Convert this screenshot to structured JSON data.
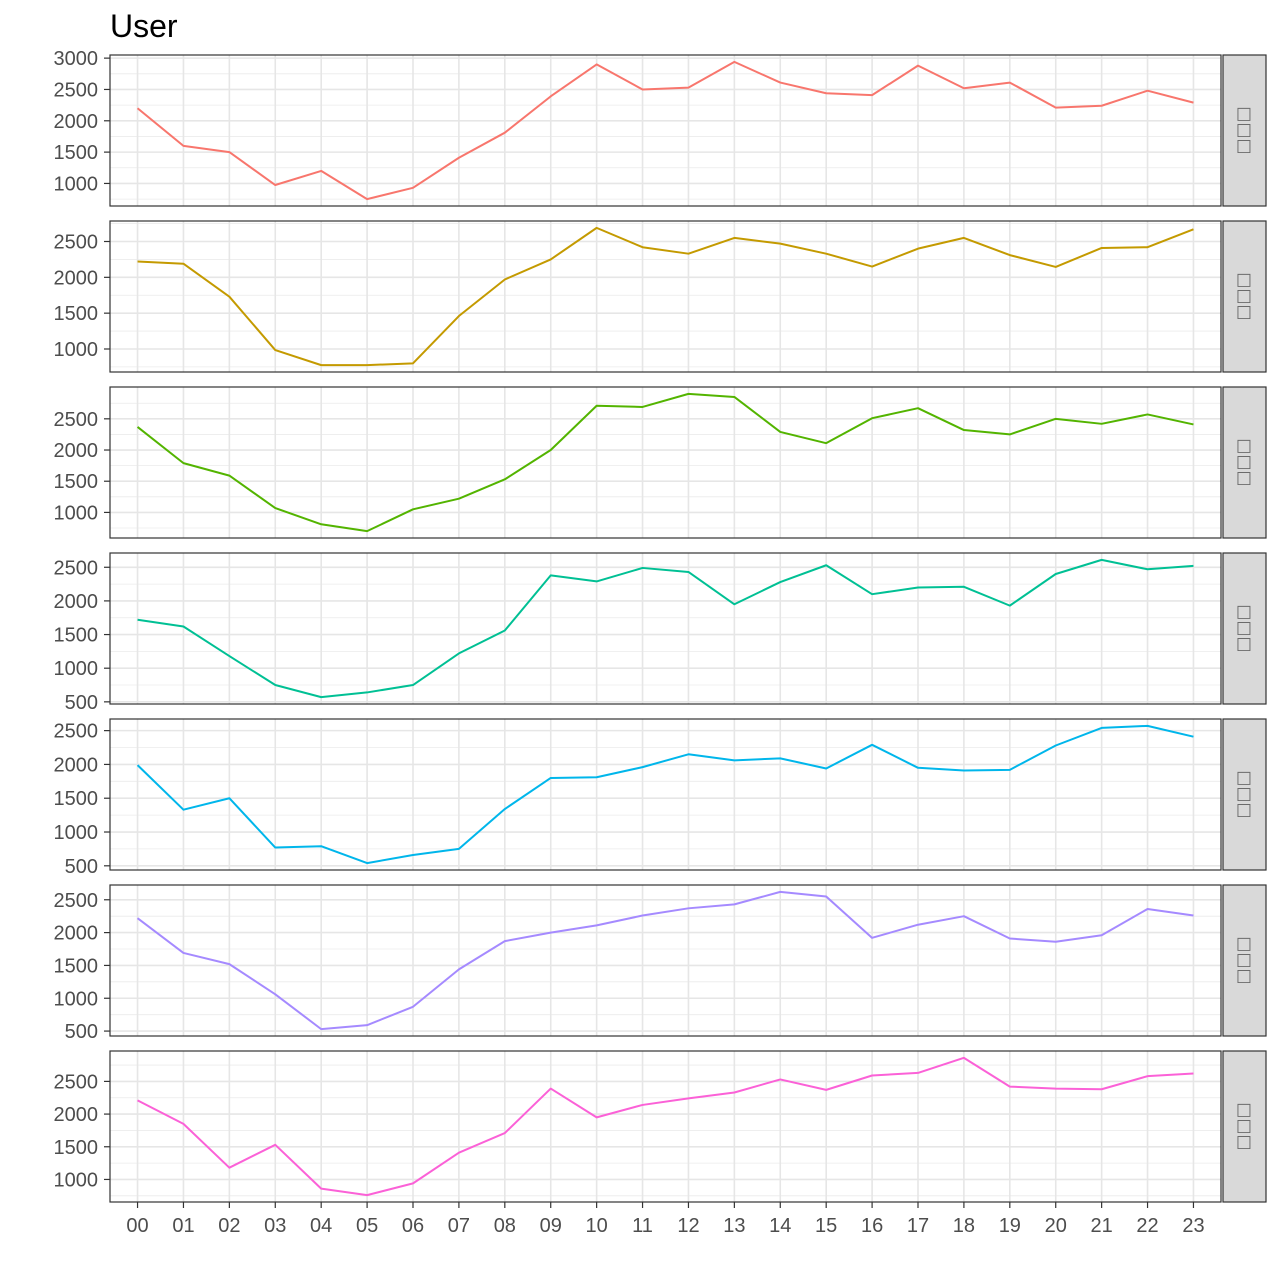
{
  "chart_data": {
    "type": "line",
    "title": "User",
    "x": [
      "00",
      "01",
      "02",
      "03",
      "04",
      "05",
      "06",
      "07",
      "08",
      "09",
      "10",
      "11",
      "12",
      "13",
      "14",
      "15",
      "16",
      "17",
      "18",
      "19",
      "20",
      "21",
      "22",
      "23"
    ],
    "grid": true,
    "legend": "none",
    "panels": [
      {
        "strip": "□□□",
        "color": "#F8766D",
        "ylim": [
          640,
          3050
        ],
        "yticks": [
          1000,
          1500,
          2000,
          2500,
          3000
        ],
        "values": [
          2200,
          1600,
          1500,
          975,
          1200,
          750,
          930,
          1410,
          1810,
          2390,
          2900,
          2500,
          2530,
          2940,
          2610,
          2440,
          2410,
          2880,
          2520,
          2610,
          2210,
          2240,
          2480,
          2290
        ]
      },
      {
        "strip": "□□□",
        "color": "#C49A00",
        "ylim": [
          679,
          2786
        ],
        "yticks": [
          1000,
          1500,
          2000,
          2500
        ],
        "values": [
          2220,
          2190,
          1730,
          985,
          775,
          775,
          800,
          1460,
          1970,
          2250,
          2690,
          2420,
          2330,
          2550,
          2470,
          2330,
          2150,
          2400,
          2550,
          2310,
          2145,
          2410,
          2420,
          2670
        ]
      },
      {
        "strip": "□□□",
        "color": "#53B400",
        "ylim": [
          590,
          3010
        ],
        "yticks": [
          1000,
          1500,
          2000,
          2500
        ],
        "values": [
          2370,
          1790,
          1590,
          1070,
          810,
          700,
          1050,
          1220,
          1530,
          2000,
          2710,
          2690,
          2900,
          2850,
          2290,
          2110,
          2510,
          2670,
          2320,
          2250,
          2500,
          2420,
          2570,
          2410
        ]
      },
      {
        "strip": "□□□",
        "color": "#00C094",
        "ylim": [
          468,
          2712
        ],
        "yticks": [
          500,
          1000,
          1500,
          2000,
          2500
        ],
        "values": [
          1720,
          1620,
          1180,
          750,
          570,
          640,
          750,
          1220,
          1560,
          2380,
          2290,
          2490,
          2430,
          1950,
          2280,
          2530,
          2100,
          2200,
          2210,
          1930,
          2400,
          2610,
          2470,
          2520
        ]
      },
      {
        "strip": "□□□",
        "color": "#00B6EB",
        "ylim": [
          438,
          2672
        ],
        "yticks": [
          500,
          1000,
          1500,
          2000,
          2500
        ],
        "values": [
          1990,
          1330,
          1500,
          770,
          790,
          540,
          660,
          750,
          1340,
          1800,
          1810,
          1960,
          2150,
          2060,
          2090,
          1940,
          2290,
          1950,
          1910,
          1920,
          2280,
          2540,
          2570,
          2410
        ]
      },
      {
        "strip": "□□□",
        "color": "#A58AFF",
        "ylim": [
          425,
          2725
        ],
        "yticks": [
          500,
          1000,
          1500,
          2000,
          2500
        ],
        "values": [
          2220,
          1690,
          1520,
          1060,
          530,
          590,
          870,
          1440,
          1870,
          2000,
          2110,
          2260,
          2370,
          2430,
          2620,
          2550,
          1920,
          2120,
          2250,
          1910,
          1860,
          1960,
          2360,
          2260
        ]
      },
      {
        "strip": "□□□",
        "color": "#FB61D7",
        "ylim": [
          655,
          2965
        ],
        "yticks": [
          1000,
          1500,
          2000,
          2500
        ],
        "values": [
          2210,
          1850,
          1180,
          1530,
          860,
          760,
          940,
          1410,
          1710,
          2390,
          1950,
          2140,
          2240,
          2330,
          2530,
          2370,
          2590,
          2630,
          2860,
          2420,
          2390,
          2380,
          2580,
          2620
        ]
      }
    ]
  }
}
